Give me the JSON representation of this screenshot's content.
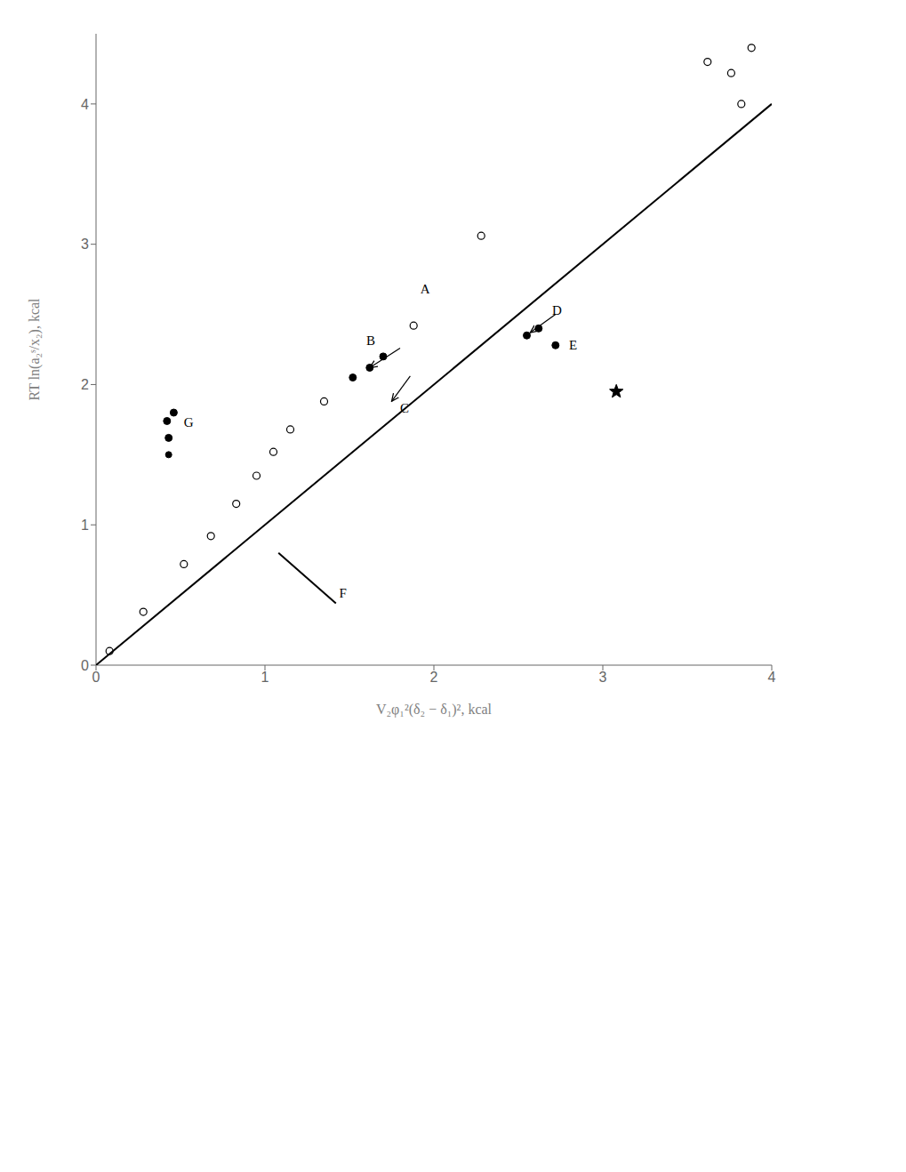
{
  "chart_data": {
    "type": "scatter",
    "xlabel": "V₂φ₁²(δ₂ − δ₁)², kcal",
    "ylabel": "RT ln(a₂ˢ/x₂), kcal",
    "xlim": [
      0,
      4
    ],
    "ylim": [
      0,
      4.5
    ],
    "xticks": [
      0,
      1,
      2,
      3,
      4
    ],
    "yticks": [
      0,
      1,
      2,
      3,
      4
    ],
    "grid": false,
    "series": [
      {
        "type": "line",
        "color": "#000000",
        "x": [
          0.0,
          4.0
        ],
        "y": [
          0.0,
          4.0
        ]
      },
      {
        "type": "scatter",
        "marker": "open_circle",
        "color": "#000000",
        "x": [
          0.08,
          0.28,
          0.52,
          0.68,
          0.83,
          0.95,
          1.05,
          1.15,
          1.35,
          1.88,
          2.28,
          3.82
        ],
        "y": [
          0.1,
          0.38,
          0.72,
          0.92,
          1.15,
          1.35,
          1.52,
          1.68,
          1.88,
          2.42,
          3.06,
          4.0
        ]
      },
      {
        "type": "scatter",
        "marker": "open_circle",
        "color": "#000000",
        "x": [
          3.62,
          3.76,
          3.88
        ],
        "y": [
          4.3,
          4.22,
          4.4
        ]
      },
      {
        "type": "scatter",
        "marker": "circle",
        "color": "#000000",
        "x": [
          1.52,
          1.62,
          1.7
        ],
        "y": [
          2.05,
          2.12,
          2.2
        ]
      },
      {
        "type": "scatter",
        "marker": "circle",
        "color": "#000000",
        "x": [
          2.55,
          2.62
        ],
        "y": [
          2.35,
          2.4
        ]
      },
      {
        "type": "scatter",
        "marker": "circle",
        "color": "#000000",
        "x": [
          2.72
        ],
        "y": [
          2.28
        ]
      },
      {
        "type": "scatter",
        "marker": "star",
        "color": "#000000",
        "x": [
          3.08
        ],
        "y": [
          1.95
        ]
      },
      {
        "type": "scatter",
        "marker": "circle",
        "color": "#000000",
        "x": [
          0.42,
          0.46,
          0.43
        ],
        "y": [
          1.74,
          1.8,
          1.62
        ]
      },
      {
        "type": "scatter",
        "marker": "small_circle",
        "color": "#000000",
        "x": [
          0.43
        ],
        "y": [
          1.5
        ]
      },
      {
        "type": "line",
        "color": "#000000",
        "x": [
          1.08,
          1.42
        ],
        "y": [
          0.8,
          0.44
        ]
      }
    ],
    "annotations": [
      {
        "text": "A",
        "x": 1.92,
        "y": 2.65
      },
      {
        "text": "B",
        "x": 1.6,
        "y": 2.28
      },
      {
        "text": "C",
        "x": 1.8,
        "y": 1.8
      },
      {
        "text": "D",
        "x": 2.7,
        "y": 2.5
      },
      {
        "text": "E",
        "x": 2.8,
        "y": 2.25
      },
      {
        "text": "F",
        "x": 1.44,
        "y": 0.48
      },
      {
        "text": "G",
        "x": 0.52,
        "y": 1.7
      }
    ],
    "arrows": [
      {
        "x": 1.8,
        "y": 2.26,
        "x_end": 1.62,
        "y_end": 2.12
      },
      {
        "x": 1.86,
        "y": 2.06,
        "x_end": 1.75,
        "y_end": 1.88
      },
      {
        "x": 2.72,
        "y": 2.5,
        "x_end": 2.57,
        "y_end": 2.37
      }
    ]
  }
}
